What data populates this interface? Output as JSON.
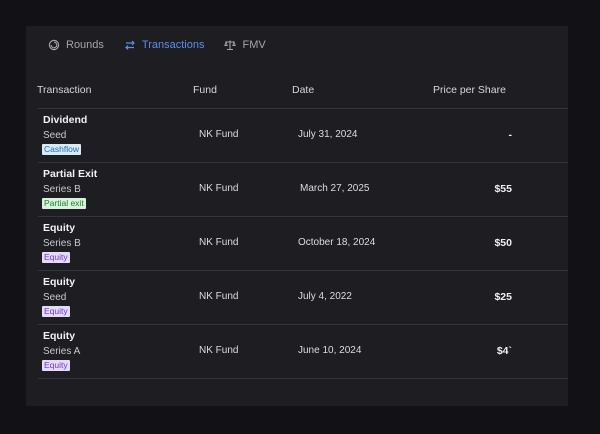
{
  "tabs": [
    {
      "label": "Rounds",
      "icon": "rounds-icon",
      "active": false
    },
    {
      "label": "Transactions",
      "icon": "transfer-arrows-icon",
      "active": true
    },
    {
      "label": "FMV",
      "icon": "scale-icon",
      "active": false
    }
  ],
  "columns": {
    "transaction": "Transaction",
    "fund": "Fund",
    "date": "Date",
    "price": "Price per Share"
  },
  "rows": [
    {
      "type": "Dividend",
      "round": "Seed",
      "badge": "Cashflow",
      "badge_kind": "cashflow",
      "fund": "NK Fund",
      "date": "July 31, 2024",
      "price": "-"
    },
    {
      "type": "Partial Exit",
      "round": "Series B",
      "badge": "Partial exit",
      "badge_kind": "partial",
      "fund": "NK Fund",
      "date": "March 27, 2025",
      "price": "$55"
    },
    {
      "type": "Equity",
      "round": "Series B",
      "badge": "Equity",
      "badge_kind": "equity",
      "fund": "NK Fund",
      "date": "October 18, 2024",
      "price": "$50"
    },
    {
      "type": "Equity",
      "round": "Seed",
      "badge": "Equity",
      "badge_kind": "equity",
      "fund": "NK Fund",
      "date": "July 4, 2022",
      "price": "$25"
    },
    {
      "type": "Equity",
      "round": "Series A",
      "badge": "Equity",
      "badge_kind": "equity",
      "fund": "NK Fund",
      "date": "June 10, 2024",
      "price": "$4`"
    }
  ],
  "colors": {
    "accent": "#5b8fe8",
    "panel": "#1d1d22",
    "background": "#121216"
  }
}
